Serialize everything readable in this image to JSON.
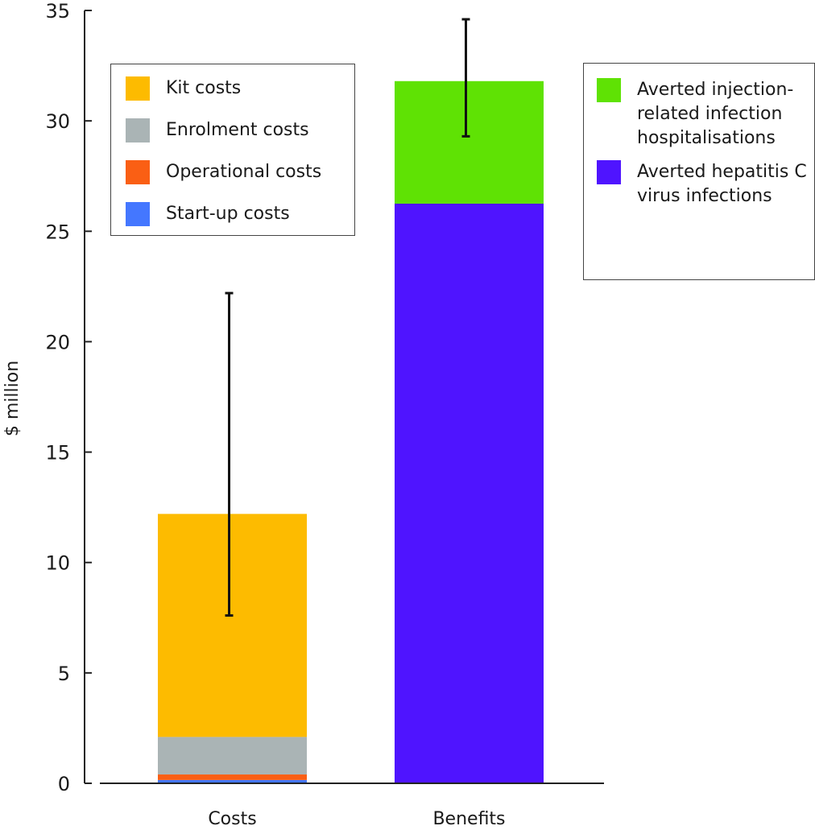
{
  "chart_data": {
    "type": "bar",
    "stacked": true,
    "title": "",
    "xlabel": "",
    "ylabel": "$ million",
    "ylim": [
      0,
      35
    ],
    "yticks": [
      0,
      5,
      10,
      15,
      20,
      25,
      30,
      35
    ],
    "grid": false,
    "categories": [
      "Costs",
      "Benefits"
    ],
    "series": [
      {
        "name": "Start-up costs",
        "color": "#4477ff",
        "values": [
          0.15,
          0
        ]
      },
      {
        "name": "Operational costs",
        "color": "#fa5f14",
        "values": [
          0.25,
          0
        ]
      },
      {
        "name": "Enrolment costs",
        "color": "#aab4b5",
        "values": [
          1.7,
          0
        ]
      },
      {
        "name": "Kit costs",
        "color": "#fdbb00",
        "values": [
          10.1,
          0
        ]
      },
      {
        "name": "Averted hepatitis C virus infections",
        "color": "#4f14ff",
        "values": [
          0,
          26.25
        ]
      },
      {
        "name": "Averted injection-related infection hospitalisations",
        "color": "#5fe204",
        "values": [
          0,
          5.55
        ]
      }
    ],
    "totals": [
      12.2,
      31.8
    ],
    "error_bars": [
      {
        "category": "Costs",
        "low": 7.6,
        "high": 22.2
      },
      {
        "category": "Benefits",
        "low": 29.3,
        "high": 34.6
      }
    ],
    "legends": [
      {
        "placement": "top-left",
        "entries": [
          {
            "label": "Kit costs",
            "color": "#fdbb00"
          },
          {
            "label": "Enrolment costs",
            "color": "#aab4b5"
          },
          {
            "label": "Operational costs",
            "color": "#fa5f14"
          },
          {
            "label": "Start-up costs",
            "color": "#4477ff"
          }
        ]
      },
      {
        "placement": "top-right",
        "entries": [
          {
            "label": "Averted injection-related infection hospitalisations",
            "color": "#5fe204"
          },
          {
            "label": "Averted hepatitis C virus infections",
            "color": "#4f14ff"
          }
        ]
      }
    ]
  }
}
